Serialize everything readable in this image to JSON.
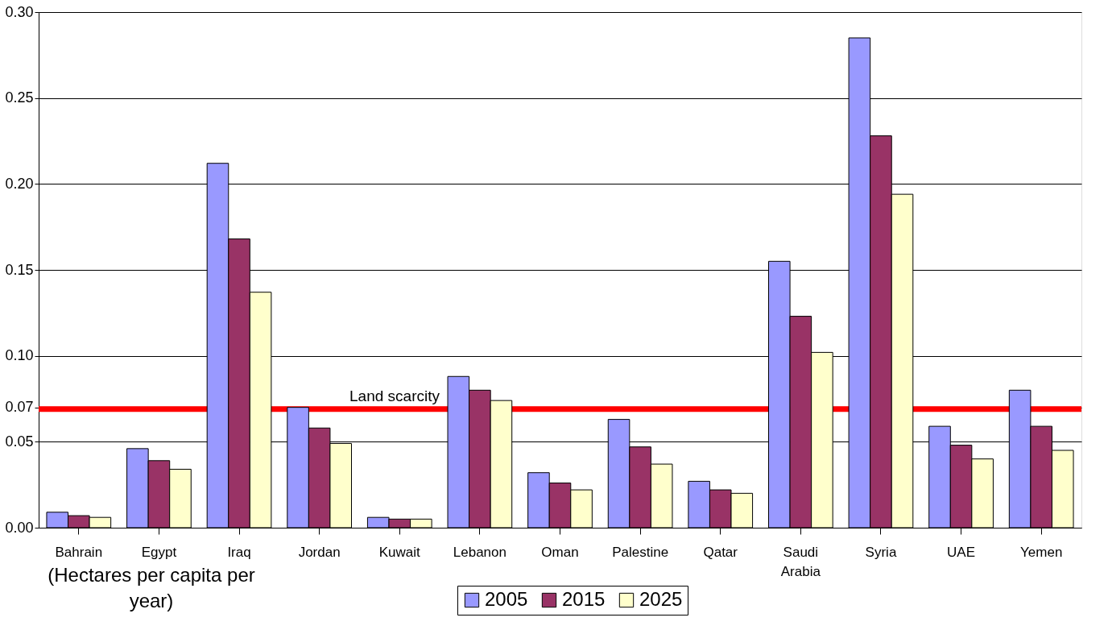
{
  "chart_data": {
    "type": "bar",
    "categories": [
      "Bahrain",
      "Egypt",
      "Iraq",
      "Jordan",
      "Kuwait",
      "Lebanon",
      "Oman",
      "Palestine",
      "Qatar",
      "Saudi Arabia",
      "Syria",
      "UAE",
      "Yemen"
    ],
    "series": [
      {
        "name": "2005",
        "color": "#9999ff",
        "values": [
          0.009,
          0.046,
          0.212,
          0.07,
          0.006,
          0.088,
          0.032,
          0.063,
          0.027,
          0.155,
          0.285,
          0.059,
          0.08
        ]
      },
      {
        "name": "2015",
        "color": "#993366",
        "values": [
          0.007,
          0.039,
          0.168,
          0.058,
          0.005,
          0.08,
          0.026,
          0.047,
          0.022,
          0.123,
          0.228,
          0.048,
          0.059
        ]
      },
      {
        "name": "2025",
        "color": "#ffffcc",
        "values": [
          0.006,
          0.034,
          0.137,
          0.049,
          0.005,
          0.074,
          0.022,
          0.037,
          0.02,
          0.102,
          0.194,
          0.04,
          0.045
        ]
      }
    ],
    "ylim": [
      0,
      0.3
    ],
    "yticks": [
      {
        "value": 0,
        "label": "0.00"
      },
      {
        "value": 0.05,
        "label": "0.05"
      },
      {
        "value": 0.07,
        "label": "0.07"
      },
      {
        "value": 0.1,
        "label": "0.10"
      },
      {
        "value": 0.15,
        "label": "0.15"
      },
      {
        "value": 0.2,
        "label": "0.20"
      },
      {
        "value": 0.25,
        "label": "0.25"
      },
      {
        "value": 0.3,
        "label": "0.30"
      }
    ],
    "ref_lines": [
      {
        "axis": "y",
        "value": 0.069,
        "label": "Land scarcity",
        "color": "#ff0000"
      }
    ],
    "annotations": [
      "(Hectares per capita per year)"
    ],
    "grid": "y",
    "legend": "bottom"
  }
}
